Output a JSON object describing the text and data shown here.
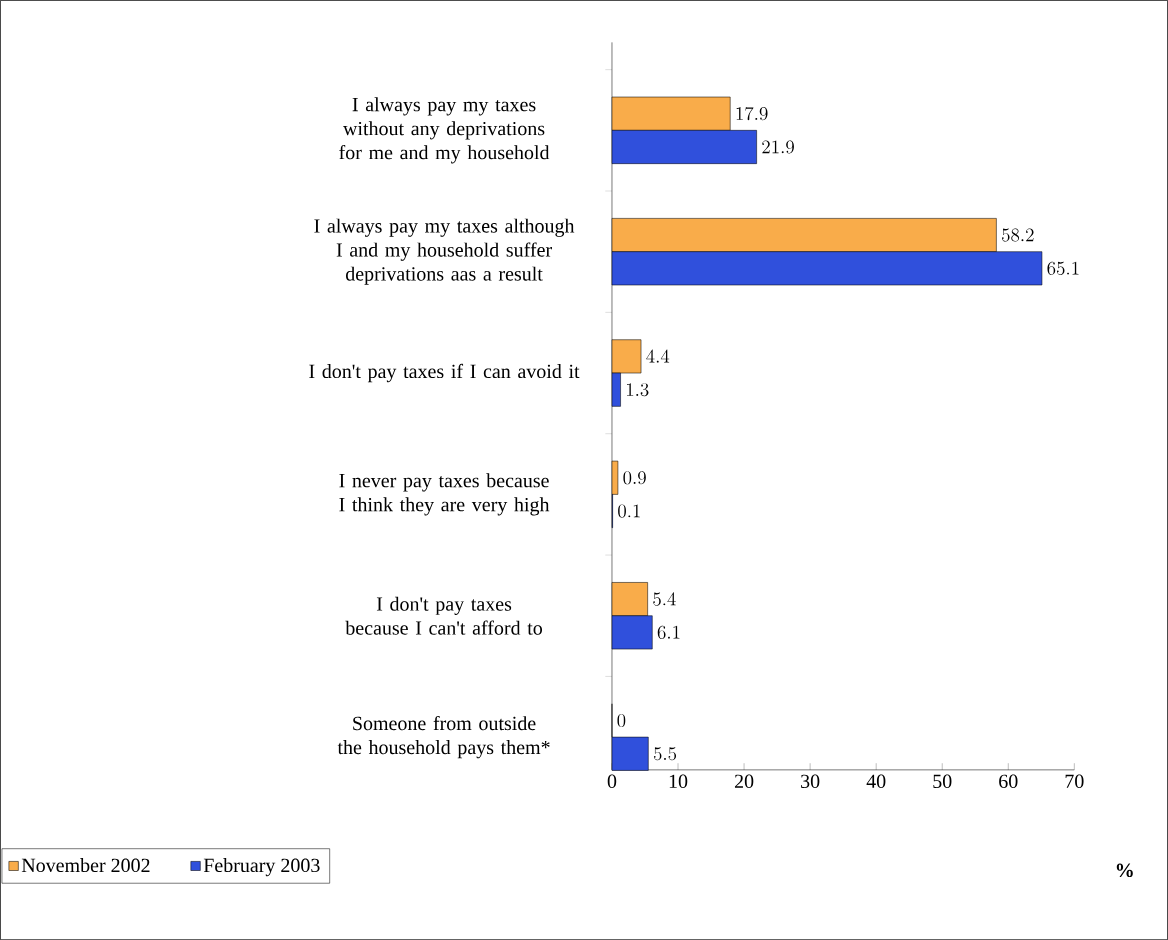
{
  "chart_data": {
    "type": "bar",
    "orientation": "horizontal",
    "xlabel": "%",
    "categories": [
      "I always pay my taxes without any deprivations for me and my household",
      "I always pay my taxes although I and my household suffer deprivations aas a result",
      "I don't pay taxes if I can avoid it",
      "I never pay taxes because I think they are very high",
      "I don't pay taxes because I can't afford to",
      "Someone from outside the household pays them*"
    ],
    "series": [
      {
        "name": "November 2002",
        "color": "#f9ac4a",
        "values": [
          17.9,
          58.2,
          4.4,
          0.9,
          5.4,
          0
        ]
      },
      {
        "name": "February 2003",
        "color": "#3050dc",
        "values": [
          21.9,
          65.1,
          1.3,
          0.1,
          6.1,
          5.5
        ]
      }
    ],
    "xlim": [
      0,
      70
    ],
    "xticks": [
      0,
      10,
      20,
      30,
      40,
      50,
      60,
      70
    ],
    "data_labels": true,
    "legend": "bottom left",
    "grid": false
  }
}
